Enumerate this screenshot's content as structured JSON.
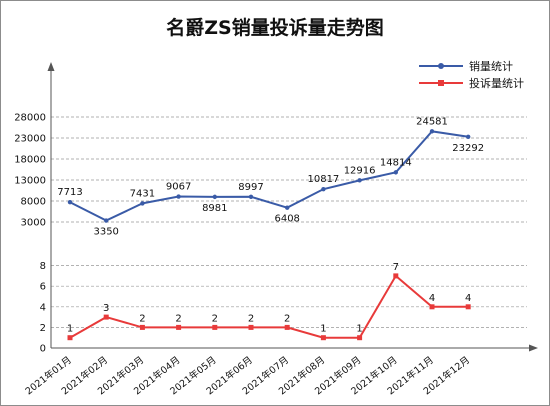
{
  "title": "名爵ZS销量投诉量走势图",
  "colors": {
    "sales": "#3a5ba7",
    "complaints": "#e83a3a",
    "grid": "#999999",
    "axis": "#555555"
  },
  "chart_data": {
    "type": "line",
    "title": "名爵ZS销量投诉量走势图",
    "categories": [
      "2021年01月",
      "2021年02月",
      "2021年03月",
      "2021年04月",
      "2021年05月",
      "2021年06月",
      "2021年07月",
      "2021年08月",
      "2021年09月",
      "2021年10月",
      "2021年11月",
      "2021年12月"
    ],
    "series": [
      {
        "name": "销量统计",
        "values": [
          7713,
          3350,
          7431,
          9067,
          8981,
          8997,
          6408,
          10817,
          12916,
          14814,
          24581,
          23292
        ]
      },
      {
        "name": "投诉量统计",
        "values": [
          1,
          3,
          2,
          2,
          2,
          2,
          2,
          1,
          1,
          7,
          4,
          4
        ]
      }
    ],
    "upper_axis": {
      "ticks": [
        3000,
        8000,
        13000,
        18000,
        23000,
        28000
      ]
    },
    "lower_axis": {
      "ticks": [
        0,
        2,
        4,
        6,
        8
      ]
    },
    "grid": true,
    "legend_position": "top-right"
  }
}
